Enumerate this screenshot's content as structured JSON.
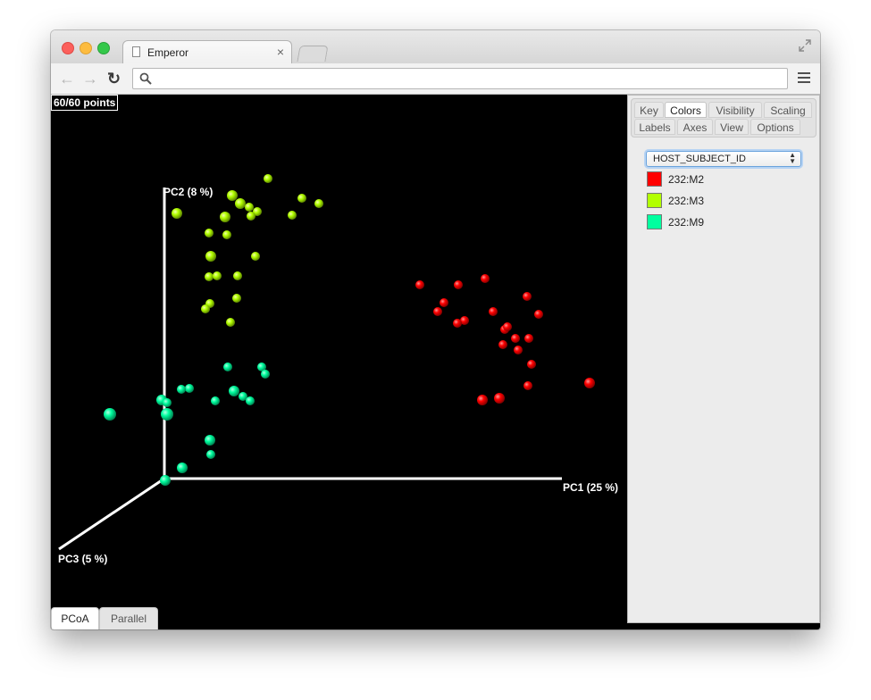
{
  "window": {
    "tab_title": "Emperor",
    "tab_close": "×",
    "address": ""
  },
  "plot": {
    "points_count": "60/60 points",
    "axes": {
      "pc1": "PC1 (25 %)",
      "pc2": "PC2 (8 %)",
      "pc3": "PC3 (5 %)"
    },
    "axis_color": "#ffffff",
    "background_color": "#000000",
    "groups": [
      {
        "name": "232:M2",
        "color": "#ff0000"
      },
      {
        "name": "232:M3",
        "color": "#b2ff00"
      },
      {
        "name": "232:M9",
        "color": "#00ff9f"
      }
    ]
  },
  "view_tabs": [
    {
      "label": "PCoA",
      "active": true
    },
    {
      "label": "Parallel",
      "active": false
    }
  ],
  "panel": {
    "tabs_row1": [
      {
        "label": "Key",
        "active": false
      },
      {
        "label": "Colors",
        "active": true
      },
      {
        "label": "Visibility",
        "active": false
      },
      {
        "label": "Scaling",
        "active": false
      }
    ],
    "tabs_row2": [
      {
        "label": "Labels",
        "active": false
      },
      {
        "label": "Axes",
        "active": false
      },
      {
        "label": "View",
        "active": false
      },
      {
        "label": "Options",
        "active": false
      }
    ],
    "color_by": "HOST_SUBJECT_ID",
    "legend": [
      {
        "label": "232:M2",
        "color": "#ff0000"
      },
      {
        "label": "232:M3",
        "color": "#b2ff00"
      },
      {
        "label": "232:M9",
        "color": "#00ff9f"
      }
    ]
  }
}
